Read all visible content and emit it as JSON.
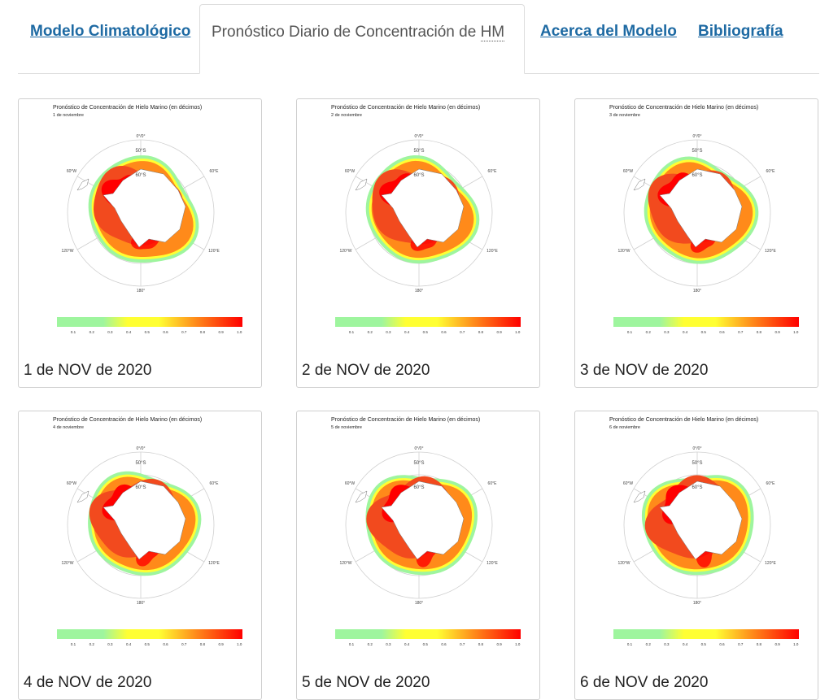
{
  "tabs": [
    {
      "label": "Modelo Climatológico",
      "active": false
    },
    {
      "label_prefix": "Pronóstico Diario de Concentración de ",
      "label_abbr": "HM",
      "active": true
    },
    {
      "label": "Acerca del Modelo",
      "active": false
    },
    {
      "label": "Bibliografía",
      "active": false
    }
  ],
  "map": {
    "title": "Pronóstico de Concentración de Hielo Marino (en décimos)",
    "lat_labels": [
      "50°S",
      "60°S"
    ],
    "lon_labels": [
      "0°/0°",
      "60°E",
      "120°E",
      "180°",
      "120°W",
      "60°W"
    ],
    "colorbar_ticks": [
      "0.1",
      "0.2",
      "0.3",
      "0.4",
      "0.5",
      "0.6",
      "0.7",
      "0.8",
      "0.9",
      "1.0"
    ],
    "colors": {
      "low": "#9ef59e",
      "mid": "#ffff33",
      "high": "#ff8a1a",
      "max": "#ff0000",
      "land": "#ffffff"
    }
  },
  "cards": [
    {
      "subtitle": "1 de noviembre",
      "caption": "1 de NOV de 2020"
    },
    {
      "subtitle": "2 de noviembre",
      "caption": "2 de NOV de 2020"
    },
    {
      "subtitle": "3 de noviembre",
      "caption": "3 de NOV de 2020"
    },
    {
      "subtitle": "4 de noviembre",
      "caption": "4 de NOV de 2020"
    },
    {
      "subtitle": "5 de noviembre",
      "caption": "5 de NOV de 2020"
    },
    {
      "subtitle": "6 de noviembre",
      "caption": "6 de NOV de 2020"
    }
  ]
}
